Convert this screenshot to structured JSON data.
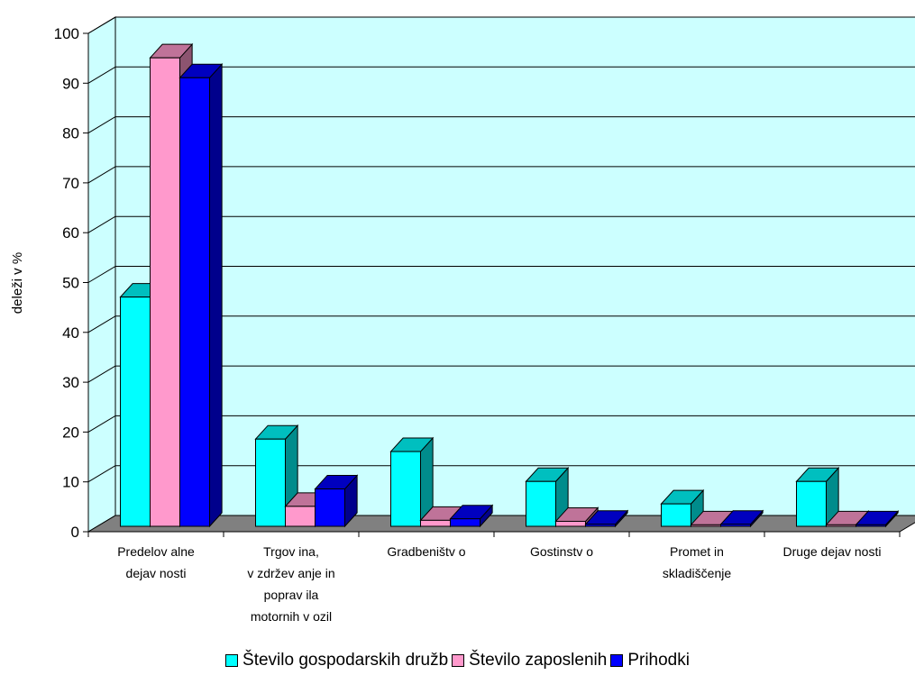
{
  "chart_data": {
    "type": "bar",
    "title": "",
    "xlabel": "",
    "ylabel": "deleži v %",
    "ylim": [
      0,
      100
    ],
    "yticks": [
      "0",
      "10",
      "20",
      "30",
      "40",
      "50",
      "60",
      "70",
      "80",
      "90",
      "100"
    ],
    "categories": [
      [
        "Predelov alne",
        "dejav nosti"
      ],
      [
        "Trgov ina,",
        "v zdržev anje in",
        "poprav ila",
        "motornih v ozil"
      ],
      [
        "Gradbeništv o"
      ],
      [
        "Gostinstv o"
      ],
      [
        "Promet in",
        "skladiščenje"
      ],
      [
        "Druge dejav nosti"
      ]
    ],
    "series": [
      {
        "name": "Število gospodarskih družb",
        "color": "#00ffff",
        "values": [
          46,
          17.5,
          15,
          9,
          4.5,
          9
        ]
      },
      {
        "name": "Število zaposlenih",
        "color": "#ff99cc",
        "values": [
          94,
          4,
          1.2,
          1,
          0.3,
          0.3
        ]
      },
      {
        "name": "Prihodki",
        "color": "#0000ff",
        "values": [
          90,
          7.5,
          1.5,
          0.4,
          0.4,
          0.3
        ]
      }
    ],
    "grid": true,
    "legend": "bottom",
    "wall_color": "#ccffff",
    "floor_color": "#808080"
  }
}
